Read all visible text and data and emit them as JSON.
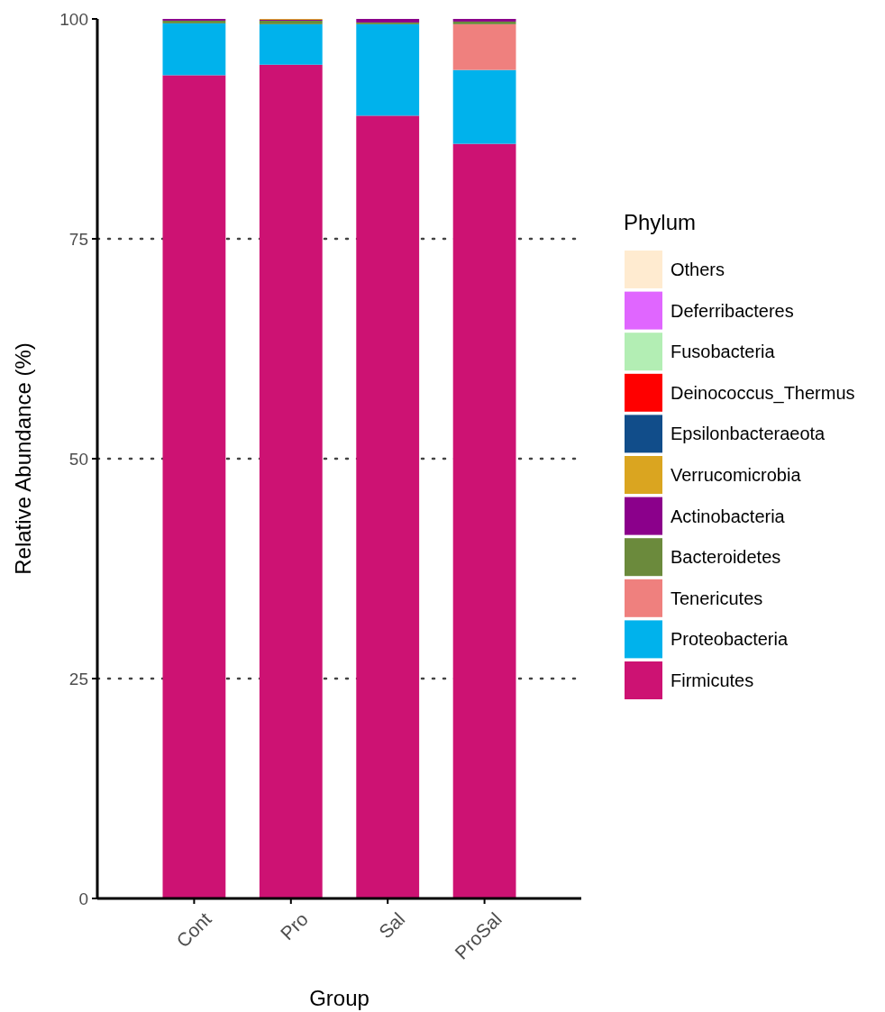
{
  "chart_data": {
    "type": "bar",
    "stacked": true,
    "xlabel": "Group",
    "ylabel": "Relative Abundance (%)",
    "legend_title": "Phylum",
    "legend": "right",
    "grid": "y",
    "ylim": [
      0,
      100
    ],
    "yticks": [
      0,
      25,
      50,
      75,
      100
    ],
    "categories": [
      "Cont",
      "Pro",
      "Sal",
      "ProSal"
    ],
    "series": [
      {
        "name": "Firmicutes",
        "color": "#cd1273",
        "values": [
          93.6,
          94.8,
          89.0,
          85.8
        ]
      },
      {
        "name": "Proteobacteria",
        "color": "#00b2ec",
        "values": [
          5.9,
          4.6,
          10.4,
          8.4
        ]
      },
      {
        "name": "Tenericutes",
        "color": "#ef807e",
        "values": [
          0,
          0,
          0,
          5.2
        ]
      },
      {
        "name": "Bacteroidetes",
        "color": "#6b8a3c",
        "values": [
          0.3,
          0.4,
          0.2,
          0.3
        ]
      },
      {
        "name": "Actinobacteria",
        "color": "#8b008b",
        "values": [
          0.2,
          0.1,
          0.4,
          0.3
        ]
      },
      {
        "name": "Verrucomicrobia",
        "color": "#daa520",
        "values": [
          0,
          0.1,
          0,
          0
        ]
      },
      {
        "name": "Epsilonbacteraeota",
        "color": "#114d8a",
        "values": [
          0,
          0,
          0,
          0
        ]
      },
      {
        "name": "Deinococcus_Thermus",
        "color": "#ff0000",
        "values": [
          0,
          0,
          0,
          0
        ]
      },
      {
        "name": "Fusobacteria",
        "color": "#b3eeb4",
        "values": [
          0,
          0,
          0,
          0
        ]
      },
      {
        "name": "Deferribacteres",
        "color": "#e066ff",
        "values": [
          0,
          0,
          0,
          0
        ]
      },
      {
        "name": "Others",
        "color": "#ffebd0",
        "values": [
          0,
          0,
          0,
          0
        ]
      }
    ]
  }
}
